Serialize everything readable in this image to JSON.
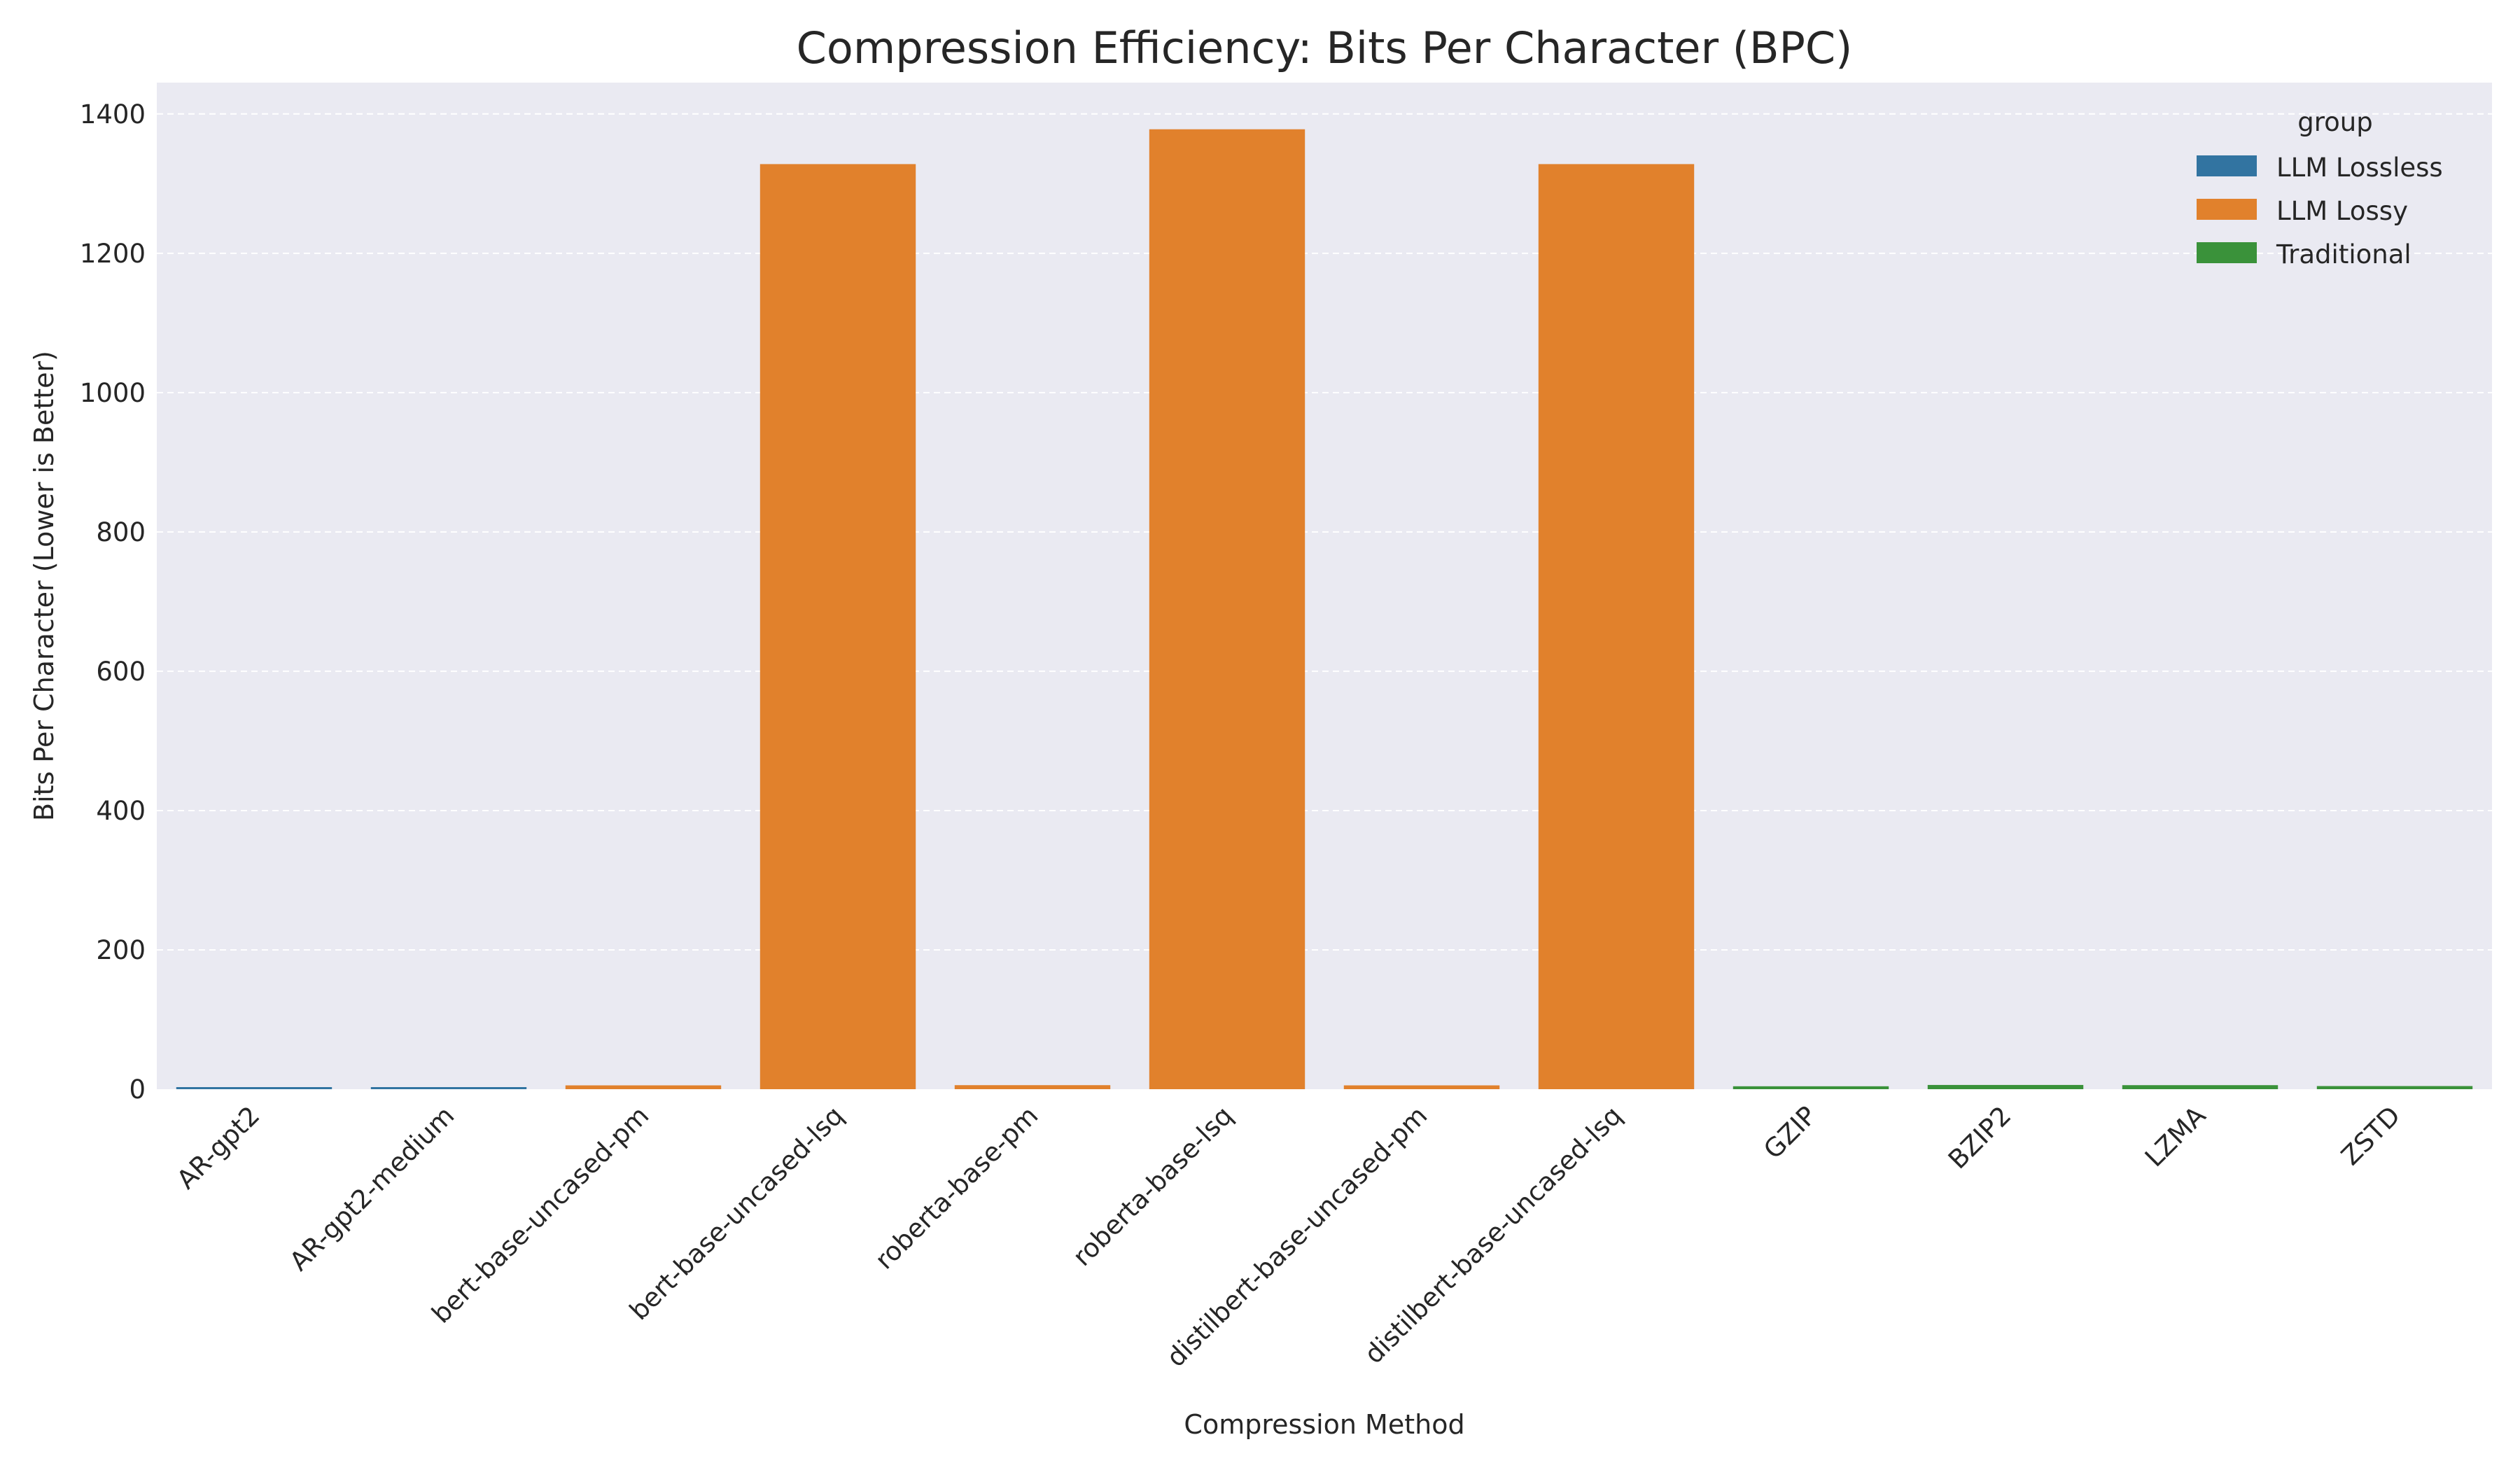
{
  "chart_data": {
    "type": "bar",
    "title": "Compression Efficiency: Bits Per Character (BPC)",
    "xlabel": "Compression Method",
    "ylabel": "Bits Per Character (Lower is Better)",
    "ylim": [
      0,
      1445
    ],
    "yticks": [
      0,
      200,
      400,
      600,
      800,
      1000,
      1200,
      1400
    ],
    "grid": "horizontal dashed",
    "legend": {
      "title": "group",
      "placement": "top-right",
      "entries": [
        {
          "name": "LLM Lossless",
          "color": "#3274a1"
        },
        {
          "name": "LLM Lossy",
          "color": "#e1812c"
        },
        {
          "name": "Traditional",
          "color": "#3a923a"
        }
      ]
    },
    "categories": [
      "AR-gpt2",
      "AR-gpt2-medium",
      "bert-base-uncased-pm",
      "bert-base-uncased-lsq",
      "roberta-base-pm",
      "roberta-base-lsq",
      "distilbert-base-uncased-pm",
      "distilbert-base-uncased-lsq",
      "GZIP",
      "BZIP2",
      "LZMA",
      "ZSTD"
    ],
    "groups": [
      "LLM Lossless",
      "LLM Lossless",
      "LLM Lossy",
      "LLM Lossy",
      "LLM Lossy",
      "LLM Lossy",
      "LLM Lossy",
      "LLM Lossy",
      "Traditional",
      "Traditional",
      "Traditional",
      "Traditional"
    ],
    "values": [
      2.1,
      1.9,
      5.5,
      1328,
      5.8,
      1378,
      5.5,
      1328,
      4.2,
      6.1,
      5.8,
      4.5
    ]
  }
}
